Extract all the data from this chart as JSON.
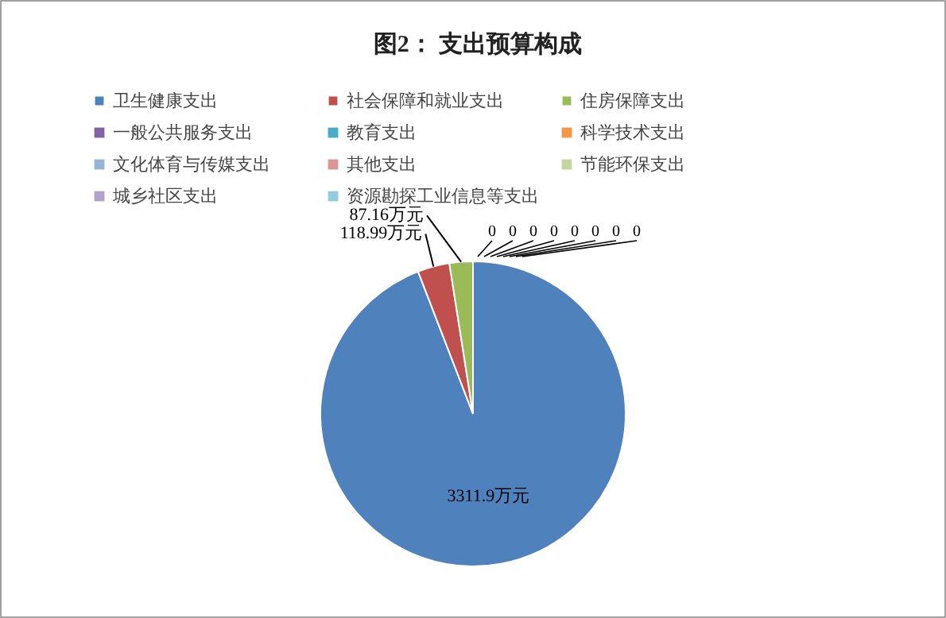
{
  "chart_data": {
    "type": "pie",
    "title": "图2： 支出预算构成",
    "categories": [
      "卫生健康支出",
      "社会保障和就业支出",
      "住房保障支出",
      "一般公共服务支出",
      "教育支出",
      "科学技术支出",
      "文化体育与传媒支出",
      "其他支出",
      "节能环保支出",
      "城乡社区支出",
      "资源勘探工业信息等支出"
    ],
    "values": [
      3311.9,
      118.99,
      87.16,
      0,
      0,
      0,
      0,
      0,
      0,
      0,
      0
    ],
    "colors": [
      "#4f81bd",
      "#c0504d",
      "#9bbb59",
      "#8064a2",
      "#4bacc6",
      "#f79646",
      "#95b3d7",
      "#da9694",
      "#c3d69b",
      "#b2a2c7",
      "#93cddd"
    ],
    "value_labels": [
      "3311.9万元",
      "118.99万元",
      "87.16万元",
      "0",
      "0",
      "0",
      "0",
      "0",
      "0",
      "0",
      "0"
    ],
    "legend": "top left"
  }
}
